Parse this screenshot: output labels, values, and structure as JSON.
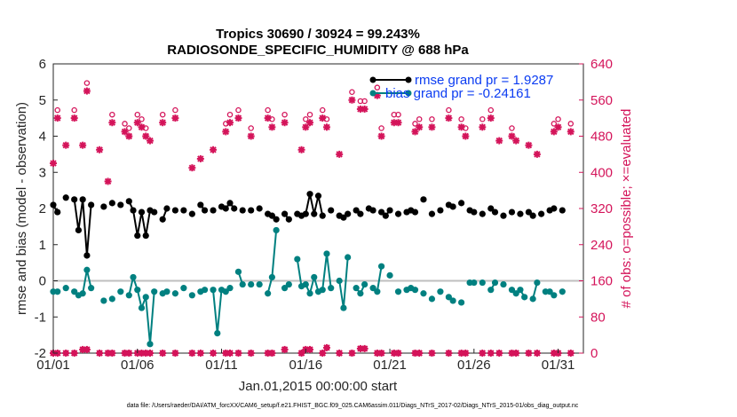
{
  "chart_data": {
    "type": "line",
    "title_line1": "Tropics 30690 / 30924 = 99.243%",
    "title_line2": "RADIOSONDE_SPECIFIC_HUMIDITY @ 688 hPa",
    "ylabel_left": "rmse and bias (model - observation)",
    "ylabel_right": "# of obs: o=possible; ×=evaluated",
    "xlabel": "Jan.01,2015 00:00:00 start",
    "footer": "data file: /Users/raeder/DAI/ATM_forcXX/CAM6_setup/f.e21.FHIST_BGC.f09_025.CAM6assim.011/Diags_NTrS_2017-02/Diags_NTrS_2015-01/obs_diag_output.nc",
    "xlim": [
      1,
      32.5
    ],
    "ylim_left": [
      -2,
      6
    ],
    "ylim_right": [
      0,
      640
    ],
    "x_ticks": [
      1,
      6,
      11,
      16,
      21,
      26,
      31
    ],
    "x_tick_labels": [
      "01/01",
      "01/06",
      "01/11",
      "01/16",
      "01/21",
      "01/26",
      "01/31"
    ],
    "y_ticks_left": [
      "-2",
      "-1",
      "0",
      "1",
      "2",
      "3",
      "4",
      "5",
      "6"
    ],
    "y_ticks_right": [
      "0",
      "80",
      "160",
      "240",
      "320",
      "400",
      "480",
      "560",
      "640"
    ],
    "legend": [
      {
        "label": "rmse grand pr = 1.9287",
        "color": "#000000"
      },
      {
        "label": "bias grand pr = -0.24161",
        "color": "#008080"
      }
    ],
    "colors": {
      "rmse": "#000000",
      "bias": "#008080",
      "obs": "#d4145a",
      "zero": "#bfbfbf"
    },
    "x": [
      1,
      1.25,
      1.5,
      1.75,
      2,
      2.25,
      2.5,
      2.75,
      3,
      3.25,
      3.5,
      3.75,
      4,
      4.25,
      4.5,
      4.75,
      5,
      5.25,
      5.5,
      5.75,
      6,
      6.25,
      6.5,
      6.75,
      7,
      7.25,
      7.5,
      7.75,
      8,
      8.25,
      8.5,
      8.75,
      9,
      9.25,
      9.5,
      9.75,
      10,
      10.25,
      10.5,
      10.75,
      11,
      11.25,
      11.5,
      11.75,
      12,
      12.25,
      12.5,
      12.75,
      13,
      13.25,
      13.5,
      13.75,
      14,
      14.25,
      14.5,
      14.75,
      15,
      15.25,
      15.5,
      15.75,
      16,
      16.25,
      16.5,
      16.75,
      17,
      17.25,
      17.5,
      17.75,
      18,
      18.25,
      18.5,
      18.75,
      19,
      19.25,
      19.5,
      19.75,
      20,
      20.25,
      20.5,
      20.75,
      21,
      21.25,
      21.5,
      21.75,
      22,
      22.25,
      22.5,
      22.75,
      23,
      23.25,
      23.5,
      23.75,
      24,
      24.25,
      24.5,
      24.75,
      25,
      25.25,
      25.5,
      25.75,
      26,
      26.25,
      26.5,
      26.75,
      27,
      27.25,
      27.5,
      27.75,
      28,
      28.25,
      28.5,
      28.75,
      29,
      29.25,
      29.5,
      29.75,
      30,
      30.25,
      30.5,
      30.75,
      31,
      31.25,
      31.5,
      31.75,
      32,
      32.25
    ],
    "rmse": [
      2.1,
      1.9,
      null,
      2.3,
      null,
      2.25,
      1.4,
      2.25,
      0.7,
      2.1,
      null,
      null,
      2.05,
      null,
      2.15,
      null,
      2.1,
      null,
      2.2,
      1.95,
      1.25,
      1.9,
      1.25,
      1.95,
      1.9,
      null,
      1.7,
      2.0,
      null,
      1.95,
      null,
      1.95,
      null,
      1.85,
      null,
      2.1,
      1.95,
      null,
      1.95,
      null,
      2.05,
      2.0,
      2.15,
      2.0,
      null,
      1.95,
      null,
      1.95,
      null,
      2.0,
      null,
      1.85,
      1.8,
      1.7,
      null,
      1.85,
      1.7,
      null,
      1.85,
      1.8,
      1.85,
      2.4,
      1.85,
      2.35,
      1.8,
      null,
      1.95,
      null,
      1.8,
      1.75,
      1.85,
      null,
      1.95,
      1.85,
      null,
      2.0,
      1.95,
      null,
      1.9,
      1.8,
      1.95,
      null,
      1.85,
      null,
      1.9,
      1.95,
      1.9,
      null,
      2.25,
      null,
      1.85,
      null,
      1.95,
      null,
      2.1,
      2.05,
      null,
      2.15,
      null,
      1.95,
      1.9,
      null,
      1.85,
      null,
      2.0,
      1.9,
      null,
      1.8,
      null,
      1.9,
      null,
      1.85,
      null,
      1.9,
      1.8,
      null,
      1.85,
      null,
      1.95,
      2.0,
      null,
      1.95
    ],
    "bias": [
      -0.3,
      -0.3,
      null,
      -0.2,
      null,
      -0.3,
      -0.4,
      -0.35,
      0.3,
      -0.2,
      null,
      null,
      -0.55,
      null,
      -0.5,
      null,
      -0.3,
      null,
      -0.4,
      0.1,
      -0.25,
      -0.75,
      -0.45,
      -1.75,
      -0.3,
      null,
      -0.35,
      -0.3,
      null,
      -0.35,
      null,
      -0.2,
      null,
      -0.4,
      null,
      -0.3,
      -0.25,
      null,
      -0.25,
      -1.45,
      -0.25,
      -0.3,
      -0.2,
      null,
      0.25,
      -0.1,
      null,
      -0.1,
      null,
      -0.1,
      null,
      -0.35,
      0.1,
      1.4,
      null,
      -0.2,
      -0.1,
      null,
      0.6,
      -0.15,
      -0.1,
      -0.35,
      0.1,
      -0.3,
      -0.25,
      0.75,
      -0.2,
      null,
      0.0,
      -0.75,
      0.65,
      null,
      -0.2,
      -0.35,
      -0.1,
      null,
      -0.2,
      -0.3,
      0.4,
      null,
      0.15,
      null,
      -0.3,
      null,
      -0.25,
      -0.2,
      -0.25,
      null,
      -0.35,
      null,
      -0.5,
      null,
      -0.3,
      null,
      -0.45,
      -0.55,
      null,
      -0.6,
      null,
      -0.05,
      -0.05,
      null,
      -0.05,
      null,
      -0.25,
      -0.05,
      null,
      -0.1,
      null,
      -0.25,
      -0.35,
      -0.25,
      -0.45,
      null,
      -0.5,
      -0.05,
      null,
      -0.3,
      -0.3,
      -0.4,
      null,
      -0.3
    ],
    "obs_possible": [
      1,
      1.25,
      1.5,
      1.75,
      2,
      2.25,
      2.5,
      2.75,
      3,
      3.25,
      3.5,
      3.75,
      4,
      4.25,
      4.5,
      4.75,
      5,
      5.25,
      5.5,
      5.75,
      6,
      6.25,
      6.5,
      6.75,
      7,
      7.25,
      7.5,
      7.75,
      8,
      8.25,
      8.5,
      8.75,
      9,
      9.25,
      9.5,
      9.75,
      10,
      10.25,
      10.5,
      10.75,
      11,
      11.25,
      11.5,
      11.75,
      12,
      12.25,
      12.5,
      12.75,
      13,
      13.25,
      13.5,
      13.75,
      14,
      14.25,
      14.5,
      14.75,
      15,
      15.25,
      15.5,
      15.75,
      16,
      16.25,
      16.5,
      16.75,
      17,
      17.25,
      17.5,
      17.75,
      18,
      18.25,
      18.5,
      18.75,
      19,
      19.25,
      19.5,
      19.75,
      20,
      20.25,
      20.5,
      20.75,
      21,
      21.25,
      21.5,
      21.75,
      22,
      22.25,
      22.5,
      22.75,
      23,
      23.25,
      23.5,
      23.75,
      24,
      24.25,
      24.5,
      24.75,
      25,
      25.25,
      25.5,
      25.75,
      26,
      26.25,
      26.5,
      26.75,
      27,
      27.25,
      27.5,
      27.75,
      28,
      28.25,
      28.5,
      28.75,
      29,
      29.25,
      29.5,
      29.75,
      30,
      30.25,
      30.5,
      30.75,
      31,
      31.25,
      31.5,
      31.75,
      32,
      32.25
    ],
    "obs_evaluated": [
      1,
      1.25,
      1.5,
      1.75,
      2,
      2.25,
      2.5,
      2.75,
      3,
      3.25,
      3.5,
      3.75,
      4,
      4.25,
      4.5,
      4.75,
      5,
      5.25,
      5.5,
      5.75,
      6,
      6.25,
      6.5,
      6.75,
      7,
      7.25,
      7.5,
      7.75,
      8,
      8.25,
      8.5,
      8.75,
      9,
      9.25,
      9.5,
      9.75,
      10,
      10.25,
      10.5,
      10.75,
      11,
      11.25,
      11.5,
      11.75,
      12,
      12.25,
      12.5,
      12.75,
      13,
      13.25,
      13.5,
      13.75,
      14,
      14.25,
      14.5,
      14.75,
      15,
      15.25,
      15.5,
      15.75,
      16,
      16.25,
      16.5,
      16.75,
      17,
      17.25,
      17.5,
      17.75,
      18,
      18.25,
      18.5,
      18.75,
      19,
      19.25,
      19.5,
      19.75,
      20,
      20.25,
      20.5,
      20.75,
      21,
      21.25,
      21.5,
      21.75,
      22,
      22.25,
      22.5,
      22.75,
      23,
      23.25,
      23.5,
      23.75,
      24,
      24.25,
      24.5,
      24.75,
      25,
      25.25,
      25.5,
      25.75,
      26,
      26.25,
      26.5,
      26.75,
      27,
      27.25,
      27.5,
      27.75,
      28,
      28.25,
      28.5,
      28.75,
      29,
      29.25,
      29.5,
      29.75,
      30,
      30.25,
      30.5,
      30.75,
      31,
      31.25,
      31.5,
      31.75,
      32,
      32.25
    ],
    "nposs": [
      null,
      520,
      null,
      null,
      null,
      520,
      null,
      null,
      null,
      null,
      null,
      null,
      null,
      null,
      null,
      null,
      null,
      null,
      null,
      null,
      null,
      null,
      null,
      null,
      null,
      null,
      null,
      null,
      null,
      null,
      null,
      null,
      null,
      null,
      null,
      null,
      null,
      null,
      null,
      null,
      null,
      null,
      null,
      null,
      null,
      null,
      null,
      null,
      null,
      null,
      null,
      null,
      null,
      null,
      null,
      null,
      null,
      null,
      null,
      null,
      null,
      null,
      null,
      null,
      null,
      null,
      null,
      null,
      null,
      null,
      null,
      null,
      null,
      null,
      null,
      null,
      null,
      null,
      null,
      null,
      null,
      null,
      null,
      null,
      null,
      null,
      null,
      null,
      null,
      null,
      null,
      null,
      null,
      null,
      null,
      null,
      null,
      null,
      null,
      null,
      null,
      null,
      null,
      null,
      null,
      null,
      null,
      null,
      null,
      null,
      null,
      null,
      null,
      null,
      null,
      null,
      null,
      null,
      null,
      null,
      null,
      null,
      null,
      null,
      null,
      null,
      null,
      null
    ],
    "n_eval_top": [
      420,
      520,
      null,
      460,
      null,
      520,
      null,
      460,
      580,
      null,
      null,
      450,
      null,
      380,
      510,
      null,
      null,
      490,
      480,
      null,
      510,
      500,
      480,
      470,
      null,
      null,
      510,
      null,
      null,
      520,
      null,
      null,
      null,
      410,
      null,
      430,
      null,
      null,
      450,
      null,
      null,
      490,
      510,
      null,
      520,
      null,
      null,
      480,
      null,
      null,
      null,
      520,
      500,
      null,
      null,
      510,
      null,
      null,
      null,
      450,
      500,
      510,
      null,
      null,
      520,
      500,
      null,
      null,
      440,
      null,
      null,
      560,
      null,
      540,
      540,
      null,
      null,
      570,
      480,
      null,
      null,
      510,
      510,
      null,
      null,
      null,
      490,
      500,
      null,
      null,
      500,
      null,
      null,
      null,
      520,
      null,
      null,
      500,
      480,
      null,
      null,
      null,
      500,
      null,
      520,
      null,
      470,
      null,
      null,
      480,
      470,
      null,
      null,
      460,
      null,
      440,
      null,
      null,
      null,
      490,
      500,
      null,
      null,
      490
    ],
    "n_eval_bottom": [
      0,
      0,
      null,
      0,
      null,
      0,
      null,
      8,
      8,
      null,
      null,
      0,
      null,
      0,
      0,
      null,
      null,
      0,
      0,
      null,
      0,
      0,
      0,
      0,
      null,
      null,
      0,
      null,
      null,
      0,
      null,
      null,
      null,
      0,
      null,
      0,
      null,
      null,
      0,
      null,
      null,
      0,
      0,
      null,
      0,
      null,
      null,
      0,
      null,
      null,
      null,
      0,
      0,
      null,
      null,
      8,
      null,
      null,
      null,
      0,
      8,
      8,
      null,
      null,
      0,
      12,
      null,
      null,
      0,
      null,
      null,
      0,
      null,
      10,
      10,
      null,
      null,
      0,
      0,
      null,
      null,
      0,
      0,
      null,
      null,
      null,
      0,
      0,
      null,
      null,
      0,
      null,
      null,
      null,
      0,
      null,
      null,
      0,
      0,
      null,
      null,
      null,
      0,
      null,
      0,
      null,
      0,
      null,
      null,
      0,
      0,
      null,
      null,
      0,
      null,
      0,
      null,
      null,
      null,
      0,
      0,
      null,
      null,
      0
    ]
  }
}
